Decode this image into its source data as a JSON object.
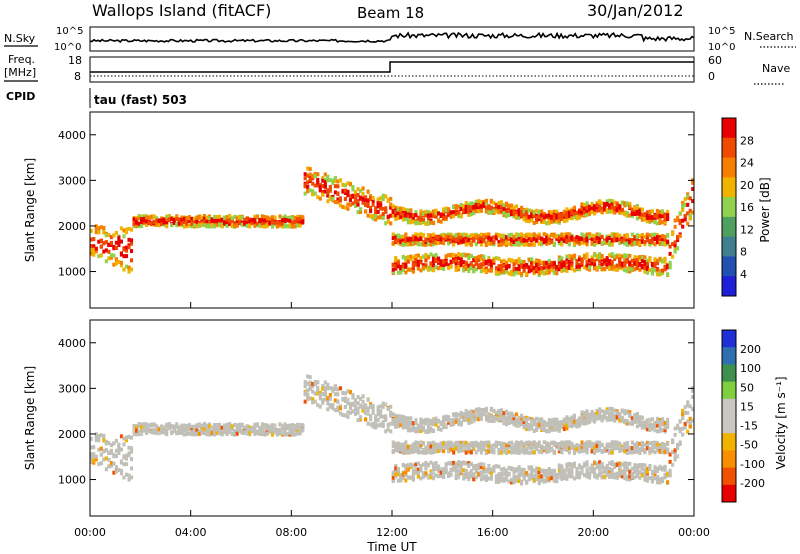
{
  "header": {
    "title": "Wallops Island (fitACF)",
    "beam": "Beam 18",
    "date": "30/Jan/2012"
  },
  "top_panels": {
    "nsky": {
      "label": "N.Sky",
      "ticks": [
        "10^5",
        "10^0"
      ]
    },
    "nsearch": {
      "label": "N.Search",
      "ticks": [
        "10^5",
        "10^0"
      ]
    },
    "freq": {
      "label_line1": "Freq.",
      "label_line2": "[MHz]",
      "ticks": [
        "18",
        "8"
      ]
    },
    "nave": {
      "label": "Nave",
      "ticks": [
        "60",
        "0"
      ]
    },
    "cpid": {
      "label": "CPID",
      "value": "tau (fast) 503"
    }
  },
  "colors": {
    "power_scale": [
      "#1f1fd8",
      "#2050b0",
      "#3f7f8f",
      "#4f9f5f",
      "#8fd24f",
      "#f0b300",
      "#f77f00",
      "#f04a00",
      "#e80000"
    ],
    "velocity_scale": [
      "#1f2fd8",
      "#2f6fb0",
      "#3f8f4f",
      "#7fcf3f",
      "#c8c8c0",
      "#c8c8c0",
      "#f0b300",
      "#f78f00",
      "#f05000",
      "#e80000"
    ],
    "ground_scatter": "#c0c0b8"
  },
  "chart_data": [
    {
      "type": "heatmap",
      "name": "power",
      "xlabel": "",
      "ylabel": "Slant Range [km]",
      "ylim": [
        200,
        4500
      ],
      "y_ticks": [
        "1000",
        "2000",
        "3000",
        "4000"
      ],
      "y_tick_values": [
        1000,
        2000,
        3000,
        4000
      ],
      "colorbar": {
        "label": "Power [dB]",
        "ticks": [
          "28",
          "24",
          "20",
          "16",
          "12",
          "8",
          "4"
        ],
        "range": [
          0,
          32
        ]
      }
    },
    {
      "type": "heatmap",
      "name": "velocity",
      "xlabel": "Time UT",
      "ylabel": "Slant Range [km]",
      "ylim": [
        200,
        4500
      ],
      "y_ticks": [
        "1000",
        "2000",
        "3000",
        "4000"
      ],
      "y_tick_values": [
        1000,
        2000,
        3000,
        4000
      ],
      "x_ticks": [
        "00:00",
        "04:00",
        "08:00",
        "12:00",
        "16:00",
        "20:00",
        "00:00"
      ],
      "x_tick_hours": [
        0,
        4,
        8,
        12,
        16,
        20,
        24
      ],
      "colorbar": {
        "label": "Velocity [m s⁻¹]",
        "ticks": [
          "200",
          "100",
          "50",
          "15",
          "-15",
          "-50",
          "-100",
          "-200"
        ]
      }
    }
  ]
}
